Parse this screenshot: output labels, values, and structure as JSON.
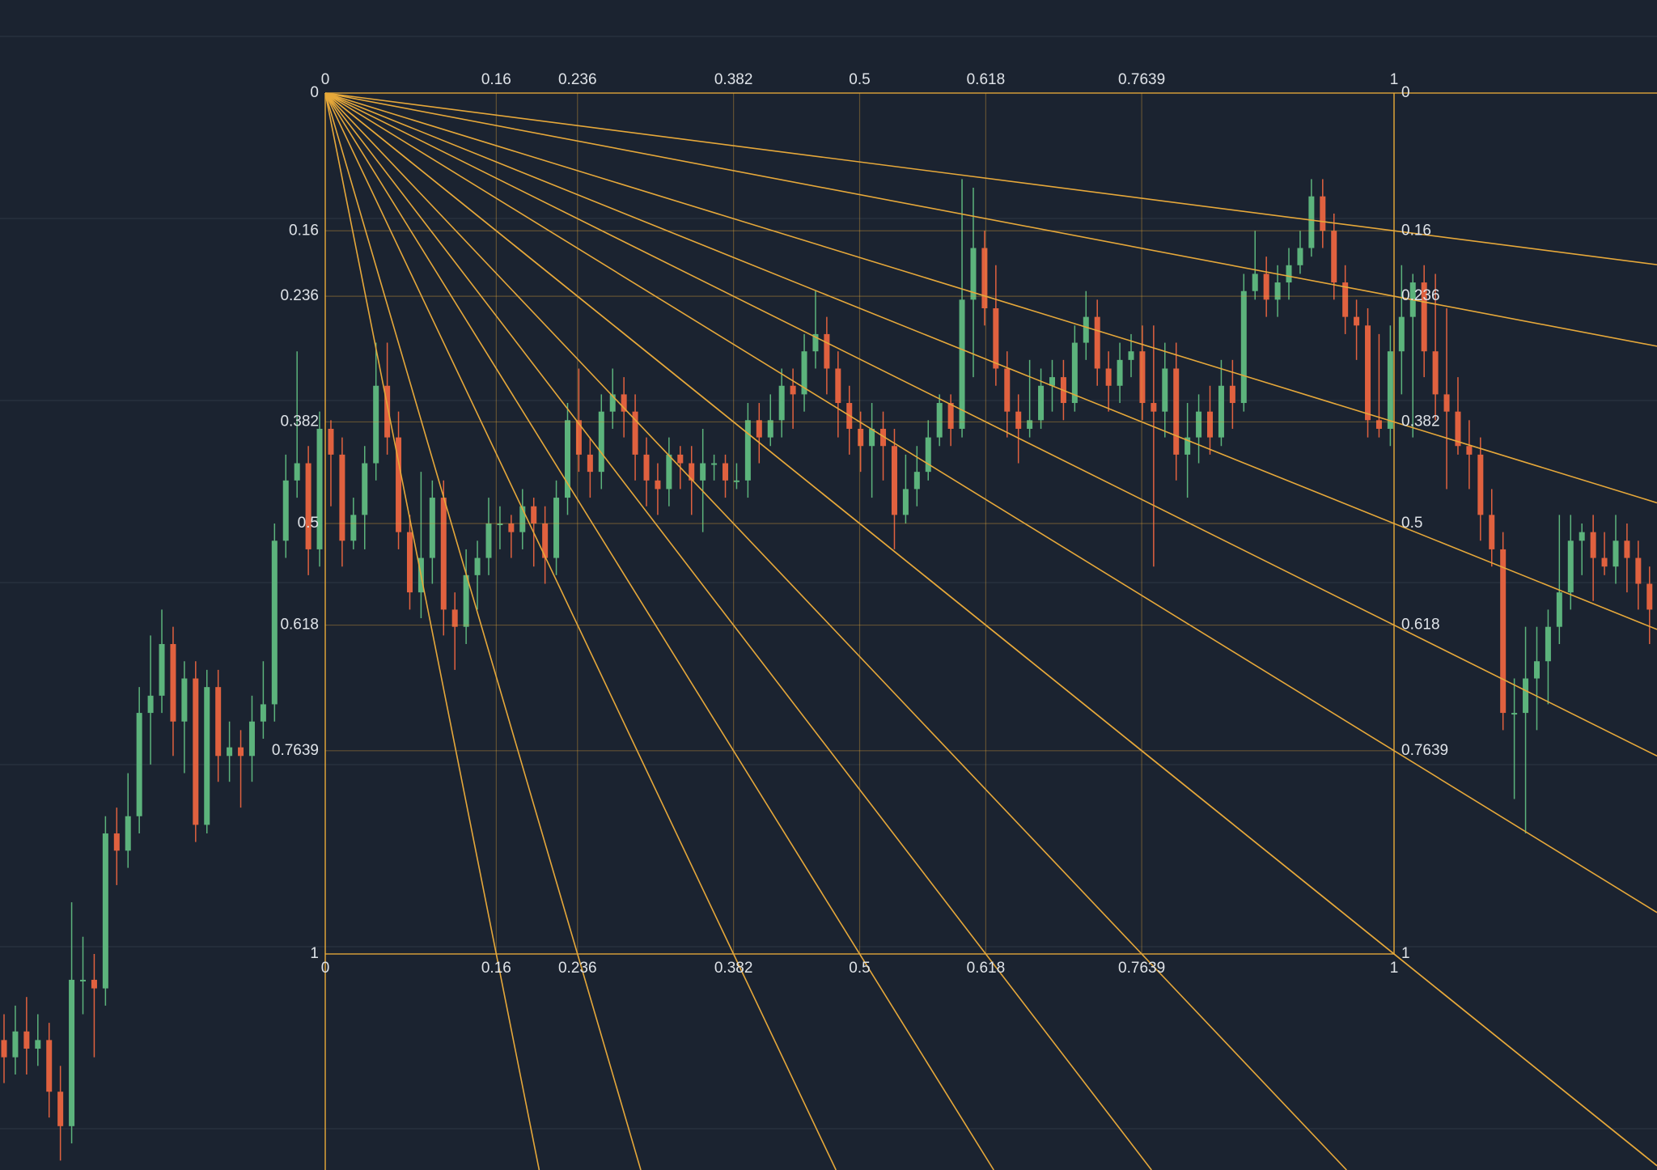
{
  "chart_data": {
    "type": "candlestick",
    "fib_levels": [
      0,
      0.16,
      0.236,
      0.382,
      0.5,
      0.618,
      0.7639,
      1
    ],
    "up_color": "#5cb37c",
    "down_color": "#e0613f",
    "fan_color": "#e6a83a",
    "candles": [
      [
        1.1,
        1.07,
        1.15,
        1.12
      ],
      [
        1.12,
        1.06,
        1.14,
        1.09
      ],
      [
        1.09,
        1.05,
        1.14,
        1.11
      ],
      [
        1.11,
        1.07,
        1.13,
        1.1
      ],
      [
        1.1,
        1.08,
        1.19,
        1.16
      ],
      [
        1.16,
        1.13,
        1.24,
        1.2
      ],
      [
        1.2,
        0.94,
        1.22,
        1.03
      ],
      [
        1.03,
        0.98,
        1.07,
        1.03
      ],
      [
        1.03,
        1.0,
        1.12,
        1.04
      ],
      [
        1.04,
        0.84,
        1.06,
        0.86
      ],
      [
        0.86,
        0.83,
        0.92,
        0.88
      ],
      [
        0.88,
        0.79,
        0.9,
        0.84
      ],
      [
        0.84,
        0.69,
        0.86,
        0.72
      ],
      [
        0.72,
        0.63,
        0.78,
        0.7
      ],
      [
        0.7,
        0.6,
        0.72,
        0.64
      ],
      [
        0.64,
        0.62,
        0.77,
        0.73
      ],
      [
        0.73,
        0.66,
        0.79,
        0.68
      ],
      [
        0.68,
        0.66,
        0.87,
        0.85
      ],
      [
        0.85,
        0.67,
        0.86,
        0.69
      ],
      [
        0.69,
        0.67,
        0.8,
        0.77
      ],
      [
        0.77,
        0.73,
        0.8,
        0.76
      ],
      [
        0.76,
        0.74,
        0.83,
        0.77
      ],
      [
        0.77,
        0.7,
        0.8,
        0.73
      ],
      [
        0.73,
        0.66,
        0.75,
        0.71
      ],
      [
        0.71,
        0.5,
        0.73,
        0.52
      ],
      [
        0.52,
        0.42,
        0.54,
        0.45
      ],
      [
        0.45,
        0.3,
        0.47,
        0.43
      ],
      [
        0.43,
        0.41,
        0.56,
        0.53
      ],
      [
        0.53,
        0.37,
        0.55,
        0.39
      ],
      [
        0.39,
        0.38,
        0.48,
        0.42
      ],
      [
        0.42,
        0.4,
        0.55,
        0.52
      ],
      [
        0.52,
        0.47,
        0.53,
        0.49
      ],
      [
        0.49,
        0.41,
        0.53,
        0.43
      ],
      [
        0.43,
        0.29,
        0.45,
        0.34
      ],
      [
        0.34,
        0.29,
        0.42,
        0.4
      ],
      [
        0.4,
        0.37,
        0.53,
        0.51
      ],
      [
        0.51,
        0.49,
        0.6,
        0.58
      ],
      [
        0.58,
        0.44,
        0.61,
        0.54
      ],
      [
        0.54,
        0.45,
        0.57,
        0.47
      ],
      [
        0.47,
        0.45,
        0.63,
        0.6
      ],
      [
        0.6,
        0.58,
        0.67,
        0.62
      ],
      [
        0.62,
        0.53,
        0.64,
        0.56
      ],
      [
        0.56,
        0.52,
        0.6,
        0.54
      ],
      [
        0.54,
        0.47,
        0.56,
        0.5
      ],
      [
        0.5,
        0.48,
        0.53,
        0.5
      ],
      [
        0.5,
        0.49,
        0.54,
        0.51
      ],
      [
        0.51,
        0.46,
        0.53,
        0.48
      ],
      [
        0.48,
        0.47,
        0.55,
        0.5
      ],
      [
        0.5,
        0.48,
        0.57,
        0.54
      ],
      [
        0.54,
        0.45,
        0.56,
        0.47
      ],
      [
        0.47,
        0.36,
        0.49,
        0.38
      ],
      [
        0.38,
        0.32,
        0.44,
        0.42
      ],
      [
        0.42,
        0.4,
        0.47,
        0.44
      ],
      [
        0.44,
        0.35,
        0.46,
        0.37
      ],
      [
        0.37,
        0.32,
        0.39,
        0.35
      ],
      [
        0.35,
        0.33,
        0.4,
        0.37
      ],
      [
        0.37,
        0.35,
        0.45,
        0.42
      ],
      [
        0.42,
        0.4,
        0.48,
        0.45
      ],
      [
        0.45,
        0.43,
        0.49,
        0.46
      ],
      [
        0.46,
        0.4,
        0.48,
        0.42
      ],
      [
        0.42,
        0.41,
        0.46,
        0.43
      ],
      [
        0.43,
        0.41,
        0.49,
        0.45
      ],
      [
        0.45,
        0.39,
        0.51,
        0.43
      ],
      [
        0.43,
        0.42,
        0.45,
        0.43
      ],
      [
        0.43,
        0.42,
        0.47,
        0.45
      ],
      [
        0.45,
        0.43,
        0.46,
        0.45
      ],
      [
        0.45,
        0.36,
        0.47,
        0.38
      ],
      [
        0.38,
        0.36,
        0.43,
        0.4
      ],
      [
        0.4,
        0.35,
        0.41,
        0.38
      ],
      [
        0.38,
        0.32,
        0.4,
        0.34
      ],
      [
        0.34,
        0.32,
        0.39,
        0.35
      ],
      [
        0.35,
        0.28,
        0.37,
        0.3
      ],
      [
        0.3,
        0.23,
        0.32,
        0.28
      ],
      [
        0.28,
        0.26,
        0.35,
        0.32
      ],
      [
        0.32,
        0.3,
        0.4,
        0.36
      ],
      [
        0.36,
        0.34,
        0.42,
        0.39
      ],
      [
        0.39,
        0.37,
        0.44,
        0.41
      ],
      [
        0.41,
        0.36,
        0.47,
        0.39
      ],
      [
        0.39,
        0.37,
        0.45,
        0.41
      ],
      [
        0.41,
        0.39,
        0.53,
        0.49
      ],
      [
        0.49,
        0.42,
        0.5,
        0.46
      ],
      [
        0.46,
        0.41,
        0.48,
        0.44
      ],
      [
        0.44,
        0.38,
        0.45,
        0.4
      ],
      [
        0.4,
        0.35,
        0.41,
        0.36
      ],
      [
        0.36,
        0.35,
        0.41,
        0.39
      ],
      [
        0.39,
        0.1,
        0.4,
        0.24
      ],
      [
        0.24,
        0.11,
        0.33,
        0.18
      ],
      [
        0.18,
        0.16,
        0.27,
        0.25
      ],
      [
        0.25,
        0.2,
        0.34,
        0.32
      ],
      [
        0.32,
        0.3,
        0.4,
        0.37
      ],
      [
        0.37,
        0.35,
        0.43,
        0.39
      ],
      [
        0.39,
        0.31,
        0.4,
        0.38
      ],
      [
        0.38,
        0.32,
        0.39,
        0.34
      ],
      [
        0.34,
        0.31,
        0.37,
        0.33
      ],
      [
        0.33,
        0.31,
        0.38,
        0.36
      ],
      [
        0.36,
        0.27,
        0.37,
        0.29
      ],
      [
        0.29,
        0.23,
        0.31,
        0.26
      ],
      [
        0.26,
        0.24,
        0.34,
        0.32
      ],
      [
        0.32,
        0.3,
        0.37,
        0.34
      ],
      [
        0.34,
        0.29,
        0.36,
        0.31
      ],
      [
        0.31,
        0.28,
        0.33,
        0.3
      ],
      [
        0.3,
        0.27,
        0.38,
        0.36
      ],
      [
        0.36,
        0.27,
        0.55,
        0.37
      ],
      [
        0.37,
        0.29,
        0.4,
        0.32
      ],
      [
        0.32,
        0.29,
        0.45,
        0.42
      ],
      [
        0.42,
        0.36,
        0.47,
        0.4
      ],
      [
        0.4,
        0.35,
        0.43,
        0.37
      ],
      [
        0.37,
        0.34,
        0.42,
        0.4
      ],
      [
        0.4,
        0.31,
        0.41,
        0.34
      ],
      [
        0.34,
        0.31,
        0.39,
        0.36
      ],
      [
        0.36,
        0.21,
        0.37,
        0.23
      ],
      [
        0.23,
        0.16,
        0.24,
        0.21
      ],
      [
        0.21,
        0.19,
        0.26,
        0.24
      ],
      [
        0.24,
        0.2,
        0.26,
        0.22
      ],
      [
        0.22,
        0.18,
        0.24,
        0.2
      ],
      [
        0.2,
        0.16,
        0.21,
        0.18
      ],
      [
        0.18,
        0.1,
        0.19,
        0.12
      ],
      [
        0.12,
        0.1,
        0.18,
        0.16
      ],
      [
        0.16,
        0.14,
        0.24,
        0.22
      ],
      [
        0.22,
        0.2,
        0.28,
        0.26
      ],
      [
        0.26,
        0.24,
        0.31,
        0.27
      ],
      [
        0.27,
        0.25,
        0.4,
        0.38
      ],
      [
        0.38,
        0.28,
        0.4,
        0.39
      ],
      [
        0.39,
        0.27,
        0.41,
        0.3
      ],
      [
        0.3,
        0.2,
        0.35,
        0.26
      ],
      [
        0.26,
        0.21,
        0.4,
        0.22
      ],
      [
        0.22,
        0.2,
        0.33,
        0.3
      ],
      [
        0.3,
        0.21,
        0.38,
        0.35
      ],
      [
        0.35,
        0.25,
        0.46,
        0.37
      ],
      [
        0.37,
        0.33,
        0.42,
        0.41
      ],
      [
        0.41,
        0.38,
        0.46,
        0.42
      ],
      [
        0.42,
        0.4,
        0.52,
        0.49
      ],
      [
        0.49,
        0.46,
        0.55,
        0.53
      ],
      [
        0.53,
        0.51,
        0.74,
        0.72
      ],
      [
        0.72,
        0.68,
        0.82,
        0.72
      ],
      [
        0.72,
        0.62,
        0.86,
        0.68
      ],
      [
        0.68,
        0.62,
        0.74,
        0.66
      ],
      [
        0.66,
        0.6,
        0.71,
        0.62
      ],
      [
        0.62,
        0.49,
        0.64,
        0.58
      ],
      [
        0.58,
        0.49,
        0.6,
        0.52
      ],
      [
        0.52,
        0.5,
        0.56,
        0.51
      ],
      [
        0.51,
        0.49,
        0.59,
        0.54
      ],
      [
        0.54,
        0.51,
        0.56,
        0.55
      ],
      [
        0.55,
        0.49,
        0.57,
        0.52
      ],
      [
        0.52,
        0.5,
        0.58,
        0.54
      ],
      [
        0.54,
        0.52,
        0.6,
        0.57
      ],
      [
        0.57,
        0.55,
        0.64,
        0.6
      ]
    ]
  }
}
